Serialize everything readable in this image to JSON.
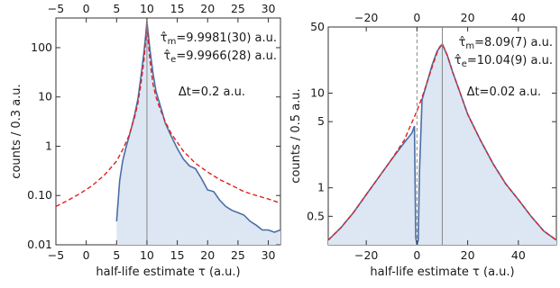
{
  "colors": {
    "data_line": "#4a6fa5",
    "data_fill": "#dde6f3",
    "fit_line": "#e02020",
    "axis": "#333333",
    "marker_line": "#888888"
  },
  "chart_data": [
    {
      "type": "area",
      "xlabel": "half-life estimate τ (a.u.)",
      "ylabel": "counts / 0.3 a.u.",
      "xlim": [
        -5,
        32
      ],
      "ylim": [
        0.01,
        400
      ],
      "y_scale": "log",
      "x_ticks": [
        -5,
        0,
        5,
        10,
        15,
        20,
        25,
        30
      ],
      "x_tick_labels": [
        "−5",
        "0",
        "5",
        "10",
        "15",
        "20",
        "25",
        "30"
      ],
      "top_x_ticks": [
        -5,
        0,
        5,
        10,
        15,
        20,
        25,
        30
      ],
      "top_x_tick_labels": [
        "−5",
        "0",
        "5",
        "10",
        "15",
        "20",
        "25",
        "30"
      ],
      "y_ticks": [
        0.01,
        0.1,
        1,
        10,
        100
      ],
      "y_tick_labels": [
        "0.01",
        "0.10",
        "1",
        "10",
        "100"
      ],
      "marker_x": 10,
      "annotations": {
        "tau_m": "τ̂m=9.9981(30) a.u.",
        "tau_m_prefix": "τ̂",
        "tau_m_sub": "m",
        "tau_m_value": "=9.9981(30) a.u.",
        "tau_e_prefix": "τ̂",
        "tau_e_sub": "e",
        "tau_e_value": "=9.9966(28) a.u.",
        "dt": "Δt=0.2 a.u."
      },
      "series": [
        {
          "kind": "data",
          "x": [
            5,
            5.5,
            6,
            6.5,
            7,
            7.5,
            8,
            8.5,
            9,
            9.5,
            9.8,
            10,
            10.2,
            10.5,
            11,
            11.5,
            12,
            12.5,
            13,
            14,
            15,
            16,
            17,
            18,
            19,
            20,
            21,
            22,
            23,
            24,
            25,
            26,
            27,
            28,
            29,
            30,
            31,
            32
          ],
          "y": [
            0.03,
            0.2,
            0.5,
            0.9,
            1.5,
            2.5,
            4.5,
            9,
            25,
            80,
            180,
            330,
            200,
            90,
            30,
            13,
            8,
            5,
            3,
            1.6,
            0.9,
            0.55,
            0.4,
            0.35,
            0.22,
            0.13,
            0.12,
            0.08,
            0.06,
            0.05,
            0.045,
            0.04,
            0.03,
            0.025,
            0.02,
            0.02,
            0.018,
            0.02
          ]
        },
        {
          "kind": "fit",
          "x": [
            -5,
            -3,
            -1,
            1,
            3,
            5,
            6,
            7,
            8,
            8.5,
            9,
            9.5,
            9.8,
            10,
            10.2,
            10.5,
            11,
            11.5,
            12,
            13,
            14,
            16,
            18,
            20,
            22,
            24,
            26,
            28,
            30,
            32
          ],
          "y": [
            0.06,
            0.08,
            0.11,
            0.16,
            0.26,
            0.5,
            0.85,
            1.6,
            4,
            7.5,
            18,
            55,
            140,
            330,
            140,
            55,
            18,
            10,
            6.5,
            3.2,
            1.8,
            0.8,
            0.45,
            0.3,
            0.21,
            0.16,
            0.12,
            0.1,
            0.085,
            0.07
          ]
        }
      ]
    },
    {
      "type": "area",
      "xlabel": "half-life estimate τ (a.u.)",
      "ylabel": "counts / 0.5 a.u.",
      "xlim": [
        -35,
        55
      ],
      "ylim": [
        0.25,
        50
      ],
      "y_scale": "log",
      "x_ticks": [
        -20,
        0,
        20,
        40
      ],
      "x_tick_labels": [
        "−20",
        "0",
        "20",
        "40"
      ],
      "top_x_ticks": [
        -20,
        0,
        20,
        40
      ],
      "top_x_tick_labels": [
        "−20",
        "0",
        "20",
        "40"
      ],
      "y_ticks": [
        0.5,
        1,
        5,
        10,
        50
      ],
      "y_tick_labels": [
        "0.5",
        "1",
        "5",
        "10",
        "50"
      ],
      "marker_x": 10,
      "zero_line_x": 0,
      "annotations": {
        "tau_m_prefix": "τ̂",
        "tau_m_sub": "m",
        "tau_m_value": "=8.09(7) a.u.",
        "tau_e_prefix": "τ̂",
        "tau_e_sub": "e",
        "tau_e_value": "=10.04(9) a.u.",
        "dt": "Δt=0.02 a.u."
      },
      "series": [
        {
          "kind": "data",
          "x": [
            -35,
            -30,
            -25,
            -20,
            -15,
            -10,
            -5,
            -2,
            -1,
            -0.5,
            0,
            0.5,
            1,
            2,
            4,
            6,
            8,
            10,
            12,
            14,
            16,
            18,
            20,
            25,
            30,
            35,
            40,
            45,
            50,
            55
          ],
          "y": [
            0.28,
            0.38,
            0.55,
            0.85,
            1.3,
            2.0,
            3.0,
            3.8,
            4.5,
            0.3,
            0.25,
            0.28,
            1.5,
            8.5,
            13,
            20,
            28,
            33,
            25,
            17,
            12,
            8.5,
            6,
            3.2,
            1.8,
            1.1,
            0.75,
            0.5,
            0.35,
            0.28
          ]
        },
        {
          "kind": "fit",
          "x": [
            -35,
            -30,
            -25,
            -20,
            -15,
            -10,
            -5,
            0,
            2,
            4,
            6,
            8,
            9,
            10,
            12,
            14,
            16,
            18,
            20,
            25,
            30,
            35,
            40,
            45,
            50,
            55
          ],
          "y": [
            0.28,
            0.38,
            0.55,
            0.85,
            1.3,
            2.0,
            3.2,
            6.5,
            9,
            13,
            19,
            27,
            31,
            33,
            25,
            17,
            12,
            8.5,
            6,
            3.2,
            1.8,
            1.1,
            0.75,
            0.5,
            0.35,
            0.28
          ]
        }
      ]
    }
  ]
}
